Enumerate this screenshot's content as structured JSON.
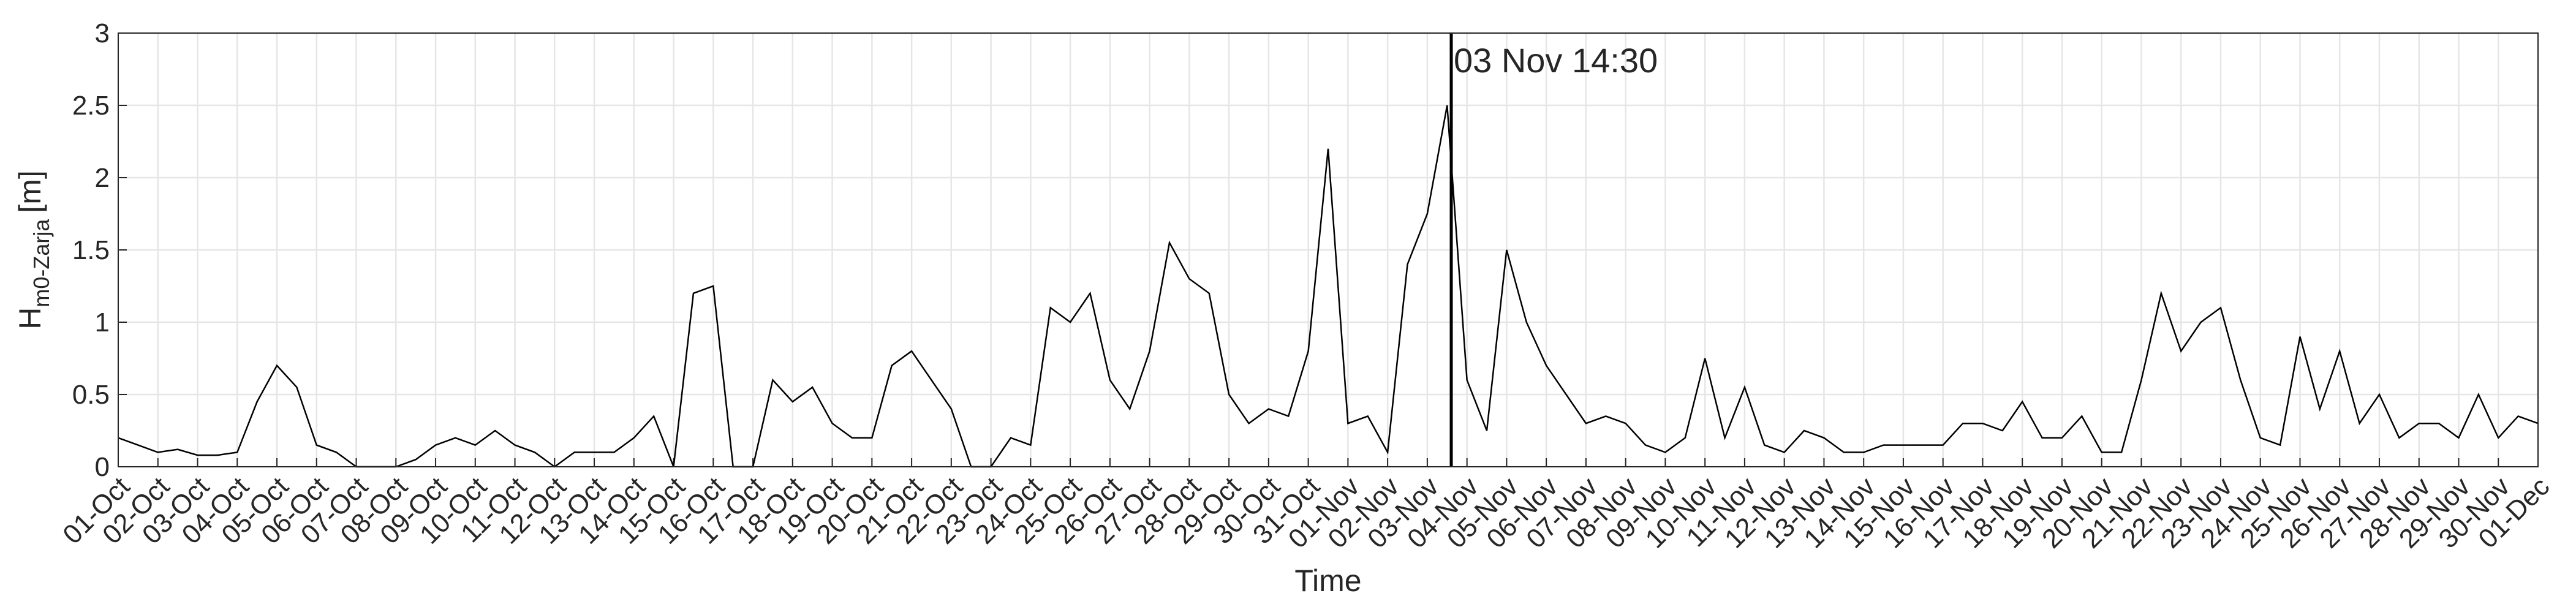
{
  "chart_data": {
    "type": "line",
    "xlabel": "Time",
    "ylabel": "H",
    "ylabel_sub": "m0-Zarja",
    "ylabel_unit": "[m]",
    "annotation": {
      "text": "03 Nov 14:30",
      "x": 33.604
    },
    "xlim": [
      0,
      61
    ],
    "ylim": [
      0,
      3
    ],
    "yticks": [
      0,
      0.5,
      1,
      1.5,
      2,
      2.5,
      3
    ],
    "grid": true,
    "xticks": [
      {
        "value": 0,
        "label": "01-Oct"
      },
      {
        "value": 1,
        "label": "02-Oct"
      },
      {
        "value": 2,
        "label": "03-Oct"
      },
      {
        "value": 3,
        "label": "04-Oct"
      },
      {
        "value": 4,
        "label": "05-Oct"
      },
      {
        "value": 5,
        "label": "06-Oct"
      },
      {
        "value": 6,
        "label": "07-Oct"
      },
      {
        "value": 7,
        "label": "08-Oct"
      },
      {
        "value": 8,
        "label": "09-Oct"
      },
      {
        "value": 9,
        "label": "10-Oct"
      },
      {
        "value": 10,
        "label": "11-Oct"
      },
      {
        "value": 11,
        "label": "12-Oct"
      },
      {
        "value": 12,
        "label": "13-Oct"
      },
      {
        "value": 13,
        "label": "14-Oct"
      },
      {
        "value": 14,
        "label": "15-Oct"
      },
      {
        "value": 15,
        "label": "16-Oct"
      },
      {
        "value": 16,
        "label": "17-Oct"
      },
      {
        "value": 17,
        "label": "18-Oct"
      },
      {
        "value": 18,
        "label": "19-Oct"
      },
      {
        "value": 19,
        "label": "20-Oct"
      },
      {
        "value": 20,
        "label": "21-Oct"
      },
      {
        "value": 21,
        "label": "22-Oct"
      },
      {
        "value": 22,
        "label": "23-Oct"
      },
      {
        "value": 23,
        "label": "24-Oct"
      },
      {
        "value": 24,
        "label": "25-Oct"
      },
      {
        "value": 25,
        "label": "26-Oct"
      },
      {
        "value": 26,
        "label": "27-Oct"
      },
      {
        "value": 27,
        "label": "28-Oct"
      },
      {
        "value": 28,
        "label": "29-Oct"
      },
      {
        "value": 29,
        "label": "30-Oct"
      },
      {
        "value": 30,
        "label": "31-Oct"
      },
      {
        "value": 31,
        "label": "01-Nov"
      },
      {
        "value": 32,
        "label": "02-Nov"
      },
      {
        "value": 33,
        "label": "03-Nov"
      },
      {
        "value": 34,
        "label": "04-Nov"
      },
      {
        "value": 35,
        "label": "05-Nov"
      },
      {
        "value": 36,
        "label": "06-Nov"
      },
      {
        "value": 37,
        "label": "07-Nov"
      },
      {
        "value": 38,
        "label": "08-Nov"
      },
      {
        "value": 39,
        "label": "09-Nov"
      },
      {
        "value": 40,
        "label": "10-Nov"
      },
      {
        "value": 41,
        "label": "11-Nov"
      },
      {
        "value": 42,
        "label": "12-Nov"
      },
      {
        "value": 43,
        "label": "13-Nov"
      },
      {
        "value": 44,
        "label": "14-Nov"
      },
      {
        "value": 45,
        "label": "15-Nov"
      },
      {
        "value": 46,
        "label": "16-Nov"
      },
      {
        "value": 47,
        "label": "17-Nov"
      },
      {
        "value": 48,
        "label": "18-Nov"
      },
      {
        "value": 49,
        "label": "19-Nov"
      },
      {
        "value": 50,
        "label": "20-Nov"
      },
      {
        "value": 51,
        "label": "21-Nov"
      },
      {
        "value": 52,
        "label": "22-Nov"
      },
      {
        "value": 53,
        "label": "23-Nov"
      },
      {
        "value": 54,
        "label": "24-Nov"
      },
      {
        "value": 55,
        "label": "25-Nov"
      },
      {
        "value": 56,
        "label": "26-Nov"
      },
      {
        "value": 57,
        "label": "27-Nov"
      },
      {
        "value": 58,
        "label": "28-Nov"
      },
      {
        "value": 59,
        "label": "29-Nov"
      },
      {
        "value": 60,
        "label": "30-Nov"
      },
      {
        "value": 61,
        "label": "01-Dec"
      }
    ],
    "x": [
      0,
      0.5,
      1,
      1.5,
      2,
      2.5,
      3,
      3.5,
      4,
      4.5,
      5,
      5.5,
      6,
      6.5,
      7,
      7.5,
      8,
      8.5,
      9,
      9.5,
      10,
      10.5,
      11,
      11.5,
      12,
      12.5,
      13,
      13.5,
      14,
      14.5,
      15,
      15.5,
      16,
      16.5,
      17,
      17.5,
      18,
      18.5,
      19,
      19.5,
      20,
      20.5,
      21,
      21.5,
      22,
      22.5,
      23,
      23.5,
      24,
      24.5,
      25,
      25.5,
      26,
      26.5,
      27,
      27.5,
      28,
      28.5,
      29,
      29.5,
      30,
      30.5,
      31,
      31.5,
      32,
      32.5,
      33,
      33.5,
      34,
      34.5,
      35,
      35.5,
      36,
      36.5,
      37,
      37.5,
      38,
      38.5,
      39,
      39.5,
      40,
      40.5,
      41,
      41.5,
      42,
      42.5,
      43,
      43.5,
      44,
      44.5,
      45,
      45.5,
      46,
      46.5,
      47,
      47.5,
      48,
      48.5,
      49,
      49.5,
      50,
      50.5,
      51,
      51.5,
      52,
      52.5,
      53,
      53.5,
      54,
      54.5,
      55,
      55.5,
      56,
      56.5,
      57,
      57.5,
      58,
      58.5,
      59,
      59.5,
      60,
      60.5,
      61
    ],
    "series": [
      {
        "color": "#000000",
        "values": [
          0.2,
          0.15,
          0.1,
          0.12,
          0.08,
          0.08,
          0.1,
          0.45,
          0.7,
          0.55,
          0.15,
          0.1,
          0,
          0,
          0,
          0.05,
          0.15,
          0.2,
          0.15,
          0.25,
          0.15,
          0.1,
          0,
          0.1,
          0.1,
          0.1,
          0.2,
          0.35,
          0,
          1.2,
          1.25,
          0,
          0,
          0.6,
          0.45,
          0.55,
          0.3,
          0.2,
          0.2,
          0.7,
          0.8,
          0.6,
          0.4,
          0,
          0,
          0.2,
          0.15,
          1.1,
          1.0,
          1.2,
          0.6,
          0.4,
          0.8,
          1.55,
          1.3,
          1.2,
          0.5,
          0.3,
          0.4,
          0.35,
          0.8,
          2.2,
          0.3,
          0.35,
          0.1,
          1.4,
          1.75,
          2.5,
          0.6,
          0.25,
          1.5,
          1.0,
          0.7,
          0.5,
          0.3,
          0.35,
          0.3,
          0.15,
          0.1,
          0.2,
          0.75,
          0.2,
          0.55,
          0.15,
          0.1,
          0.25,
          0.2,
          0.1,
          0.1,
          0.15,
          0.15,
          0.15,
          0.15,
          0.3,
          0.3,
          0.25,
          0.45,
          0.2,
          0.2,
          0.35,
          0.1,
          0.1,
          0.6,
          1.2,
          0.8,
          1.0,
          1.1,
          0.6,
          0.2,
          0.15,
          0.9,
          0.4,
          0.8,
          0.3,
          0.5,
          0.2,
          0.3,
          0.3,
          0.2,
          0.5,
          0.2,
          0.35,
          0.3
        ]
      }
    ]
  }
}
